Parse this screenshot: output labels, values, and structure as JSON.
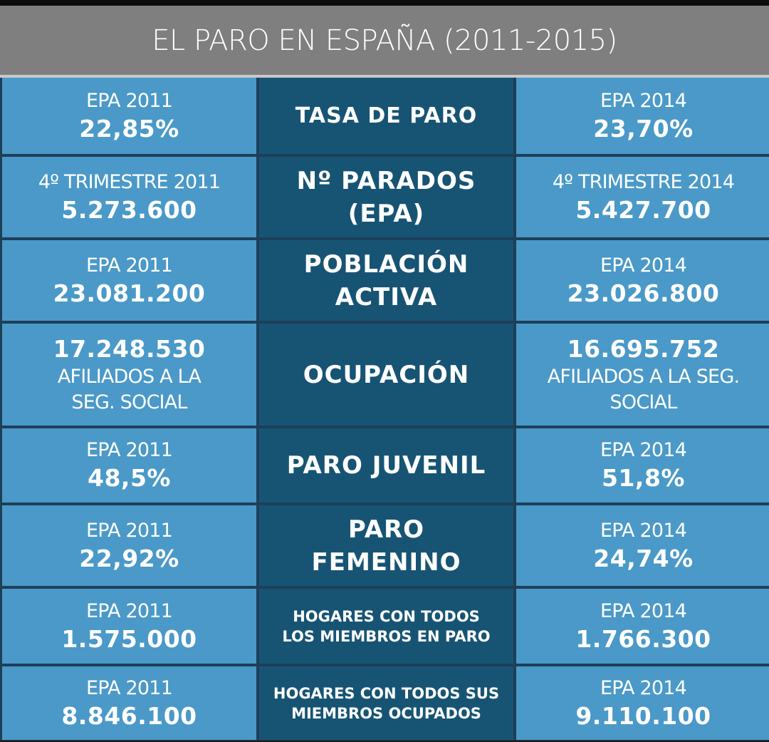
{
  "title": "EL PARO EN ESPAÑA (2011-2015)",
  "colors": {
    "title_bar": "#7f7f7f",
    "side_cell": "#4a99c8",
    "middle_cell": "#175474",
    "grid_lines": "#1d3f57",
    "text": "#ffffff"
  },
  "rows": [
    {
      "left": {
        "label": "EPA 2011",
        "value": "22,85%"
      },
      "middle": [
        "TASA DE PARO"
      ],
      "right": {
        "label": "EPA 2014",
        "value": "23,70%"
      }
    },
    {
      "left": {
        "label": "4º TRIMESTRE 2011",
        "value": "5.273.600"
      },
      "middle": [
        "Nº PARADOS",
        "(EPA)"
      ],
      "right": {
        "label": "4º TRIMESTRE 2014",
        "value": "5.427.700"
      }
    },
    {
      "left": {
        "label": "EPA 2011",
        "value": "23.081.200"
      },
      "middle": [
        "POBLACIÓN",
        "ACTIVA"
      ],
      "right": {
        "label": "EPA 2014",
        "value": "23.026.800"
      }
    },
    {
      "left": {
        "value": "17.248.530",
        "desc1": "AFILIADOS A LA",
        "desc2": "SEG. SOCIAL"
      },
      "middle": [
        "OCUPACIÓN"
      ],
      "right": {
        "value": "16.695.752",
        "desc1": "AFILIADOS A LA SEG.",
        "desc2": "SOCIAL"
      }
    },
    {
      "left": {
        "label": "EPA 2011",
        "value": "48,5%"
      },
      "middle": [
        "PARO JUVENIL"
      ],
      "right": {
        "label": "EPA 2014",
        "value": "51,8%"
      }
    },
    {
      "left": {
        "label": "EPA 2011",
        "value": "22,92%"
      },
      "middle": [
        "PARO",
        "FEMENINO"
      ],
      "right": {
        "label": "EPA 2014",
        "value": "24,74%"
      }
    },
    {
      "left": {
        "label": "EPA 2011",
        "value": "1.575.000"
      },
      "middle": [
        "HOGARES CON TODOS",
        "LOS MIEMBROS EN PARO"
      ],
      "right": {
        "label": "EPA 2014",
        "value": "1.766.300"
      }
    },
    {
      "left": {
        "label": "EPA 2011",
        "value": "8.846.100"
      },
      "middle": [
        "HOGARES CON TODOS SUS",
        "MIEMBROS OCUPADOS"
      ],
      "right": {
        "label": "EPA 2014",
        "value": "9.110.100"
      }
    }
  ]
}
